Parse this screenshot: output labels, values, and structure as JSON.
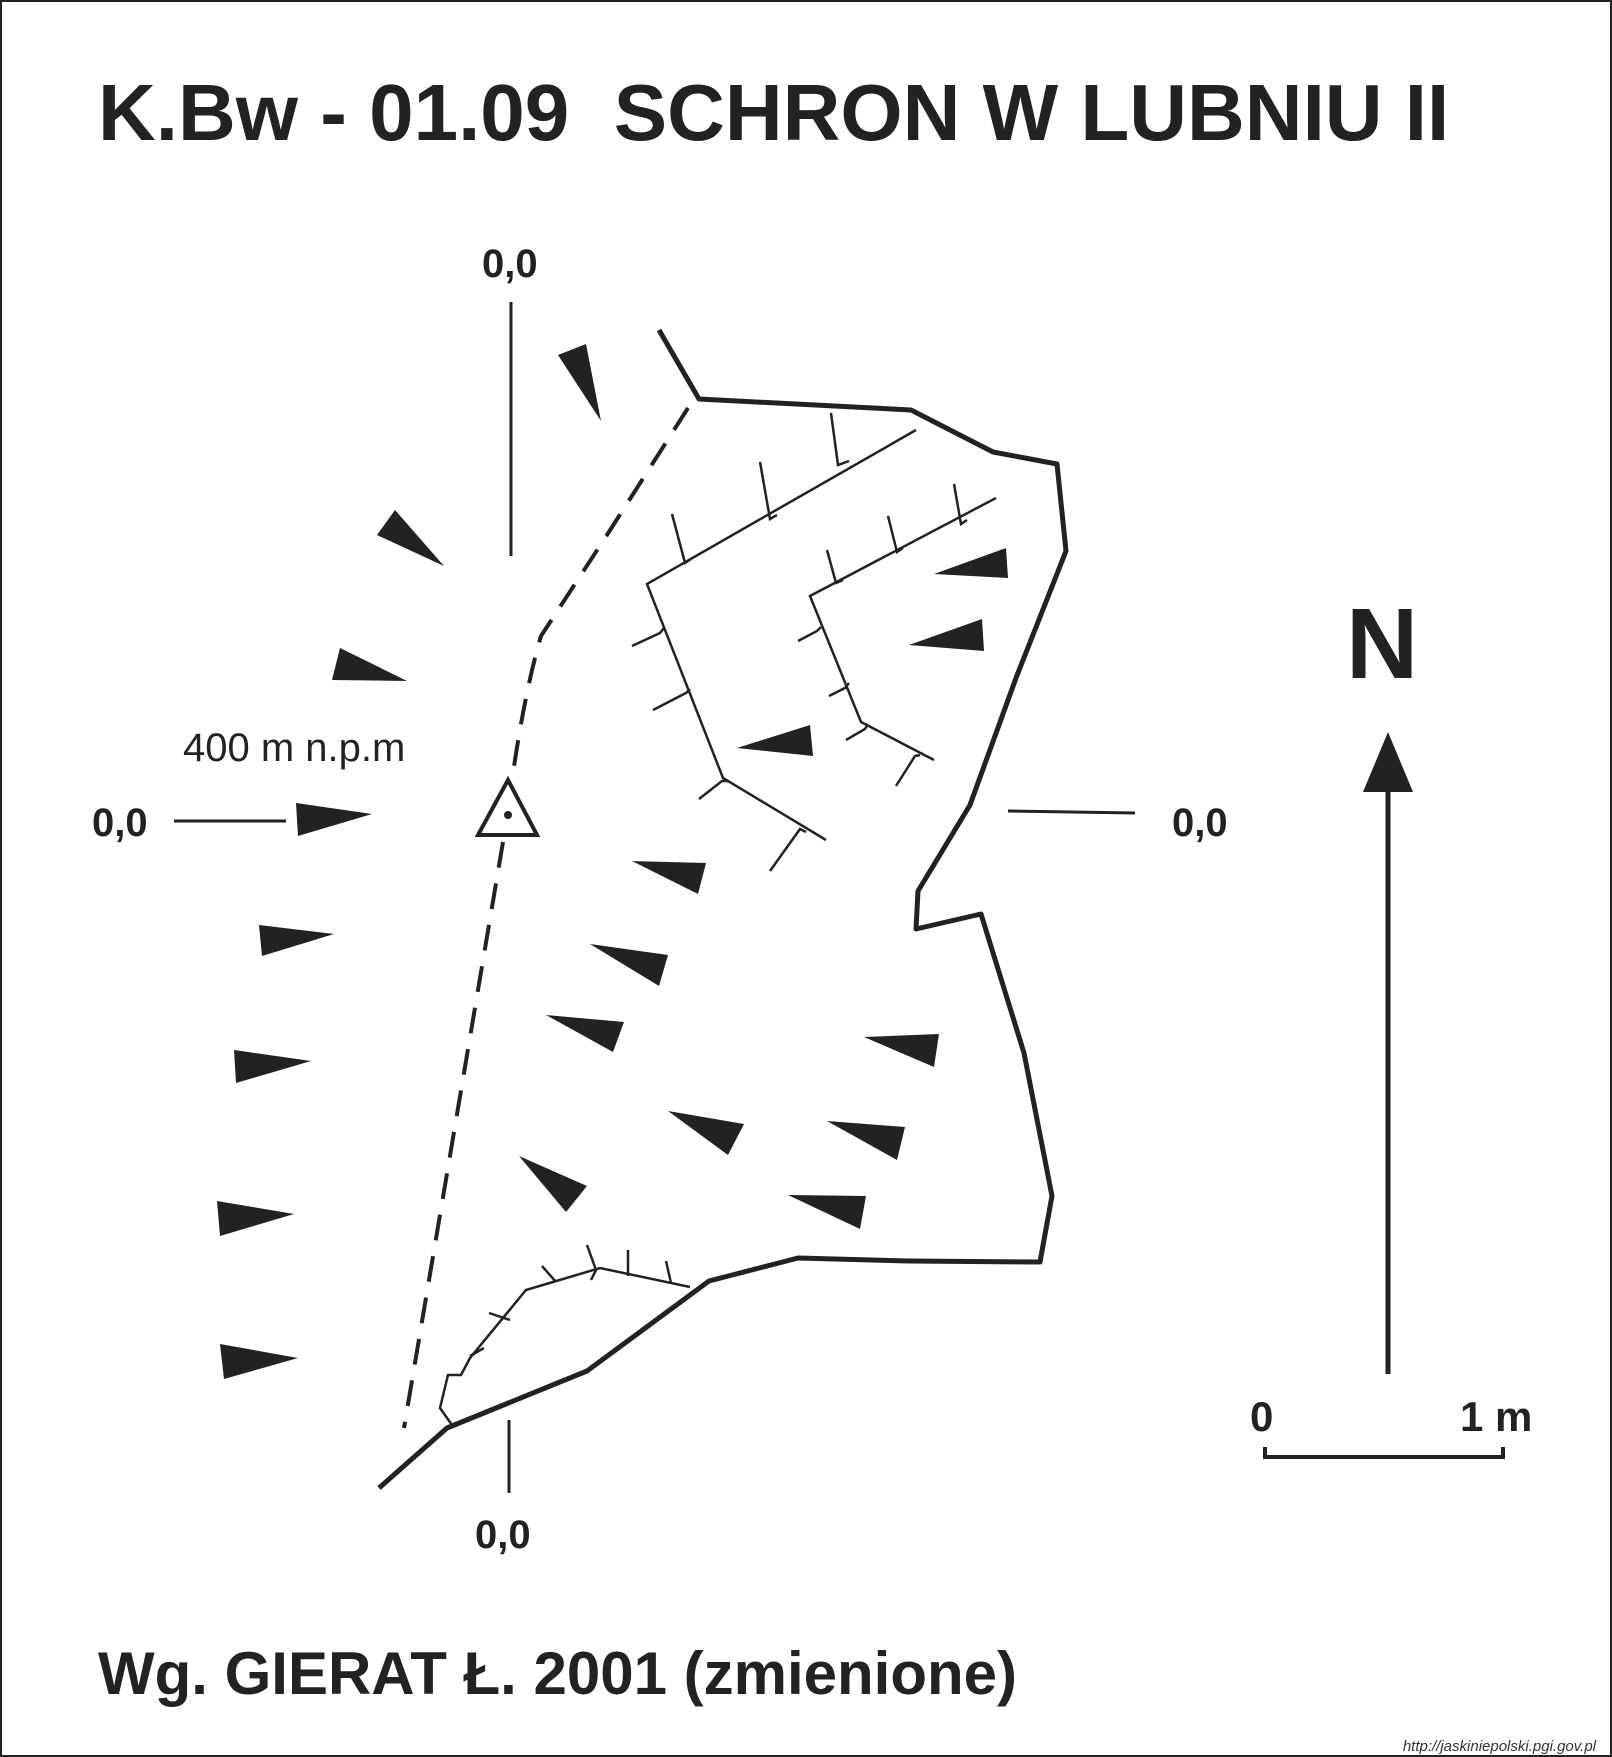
{
  "title": "K.Bw - 01.09  SCHRON W LUBNIU II",
  "section_marks": {
    "top": "0,0",
    "left": "0,0",
    "right": "0,0",
    "bottom": "0,0"
  },
  "elevation_label": "400 m n.p.m",
  "north_label": "N",
  "scale": {
    "start_label": "0",
    "end_label": "1 m"
  },
  "credit": "Wg. GIERAT Ł. 2001 (zmienione)",
  "source_url": "http://jaskiniepolski.pgi.gov.pl",
  "colors": {
    "ink": "#222222",
    "background": "#ffffff"
  }
}
